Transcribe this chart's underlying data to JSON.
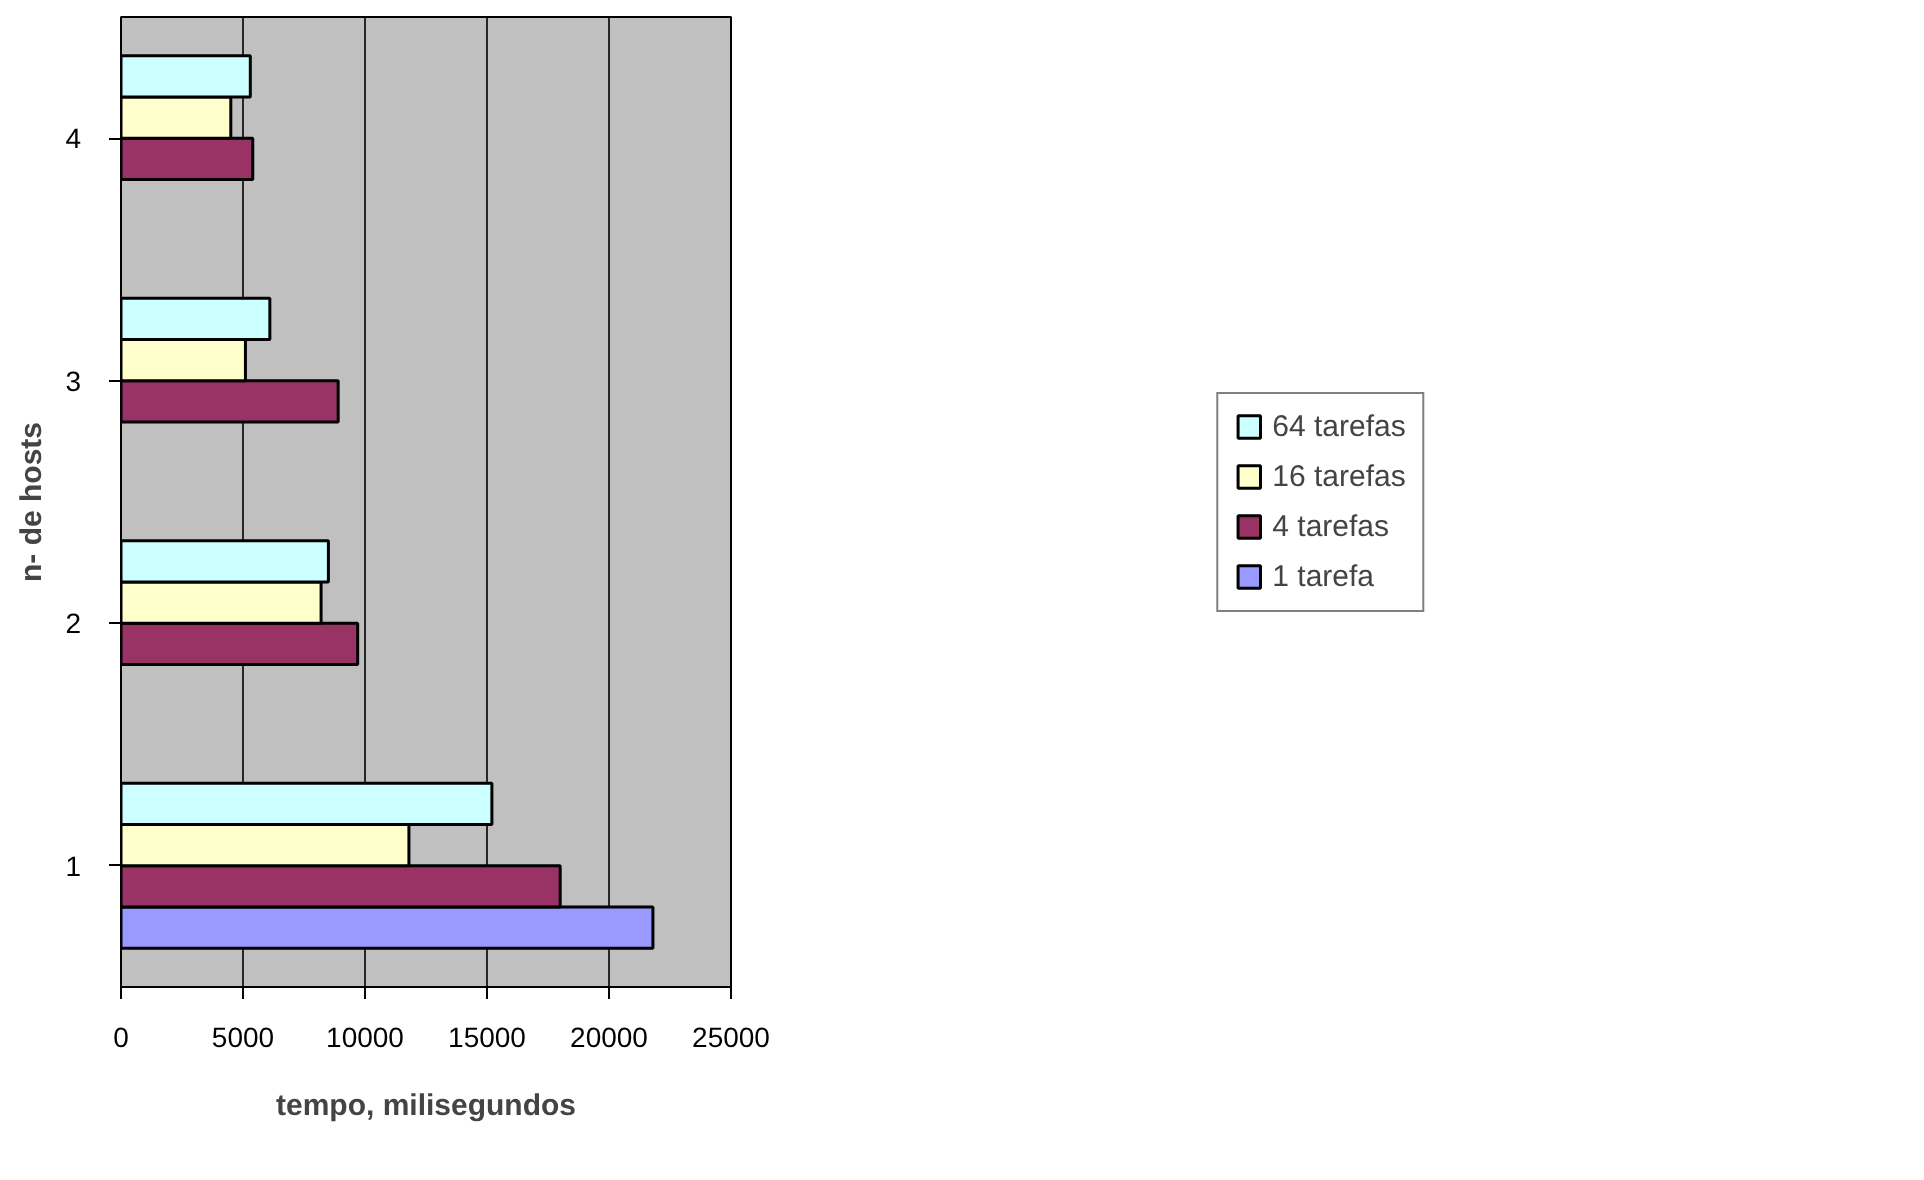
{
  "chart_data": {
    "type": "bar",
    "orientation": "horizontal",
    "xlabel": "tempo, milisegundos",
    "ylabel": "n- de hosts",
    "categories": [
      "4",
      "3",
      "2",
      "1"
    ],
    "series": [
      {
        "name": "1 tarefa",
        "color": "#9999ff",
        "values": [
          null,
          null,
          null,
          21800
        ]
      },
      {
        "name": "4 tarefas",
        "color": "#993366",
        "values": [
          5400,
          8900,
          9700,
          18000
        ]
      },
      {
        "name": "16 tarefas",
        "color": "#ffffcc",
        "values": [
          4500,
          5100,
          8200,
          11800
        ]
      },
      {
        "name": "64 tarefas",
        "color": "#ccffff",
        "values": [
          5300,
          6100,
          8500,
          15200
        ]
      }
    ],
    "xlim": [
      0,
      25000
    ],
    "xticks": [
      0,
      5000,
      10000,
      15000,
      20000,
      25000
    ],
    "grid": "x",
    "legend": "right"
  }
}
